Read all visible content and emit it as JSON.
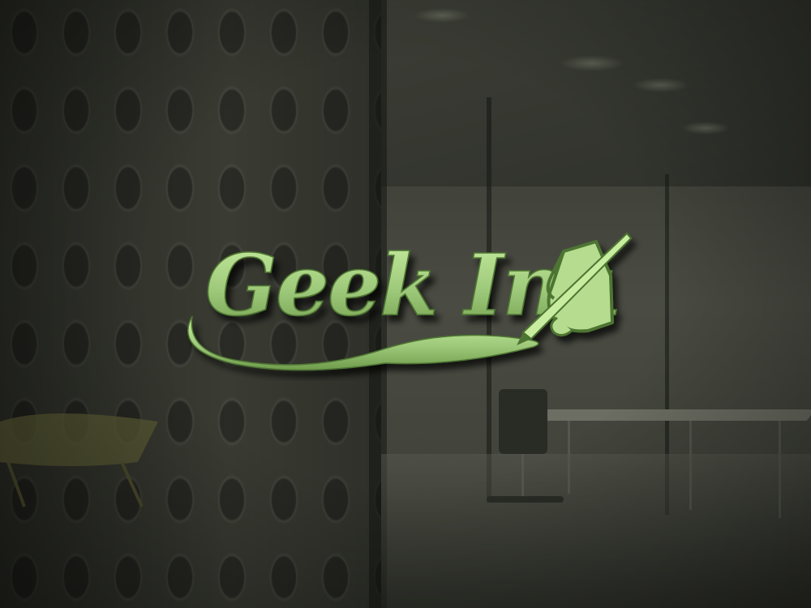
{
  "logo": {
    "text": "Geek Ink",
    "colors": {
      "face": "#9ec97a",
      "highlight": "#c8eda0",
      "shadow": "#1c2a12",
      "edge": "#5f8a3e"
    },
    "icon": "hand-writing-with-pen-icon"
  },
  "scene": {
    "background": "glass-office-wall",
    "colors": {
      "wall": "#3d3f36",
      "room": "#4a4c43"
    }
  }
}
